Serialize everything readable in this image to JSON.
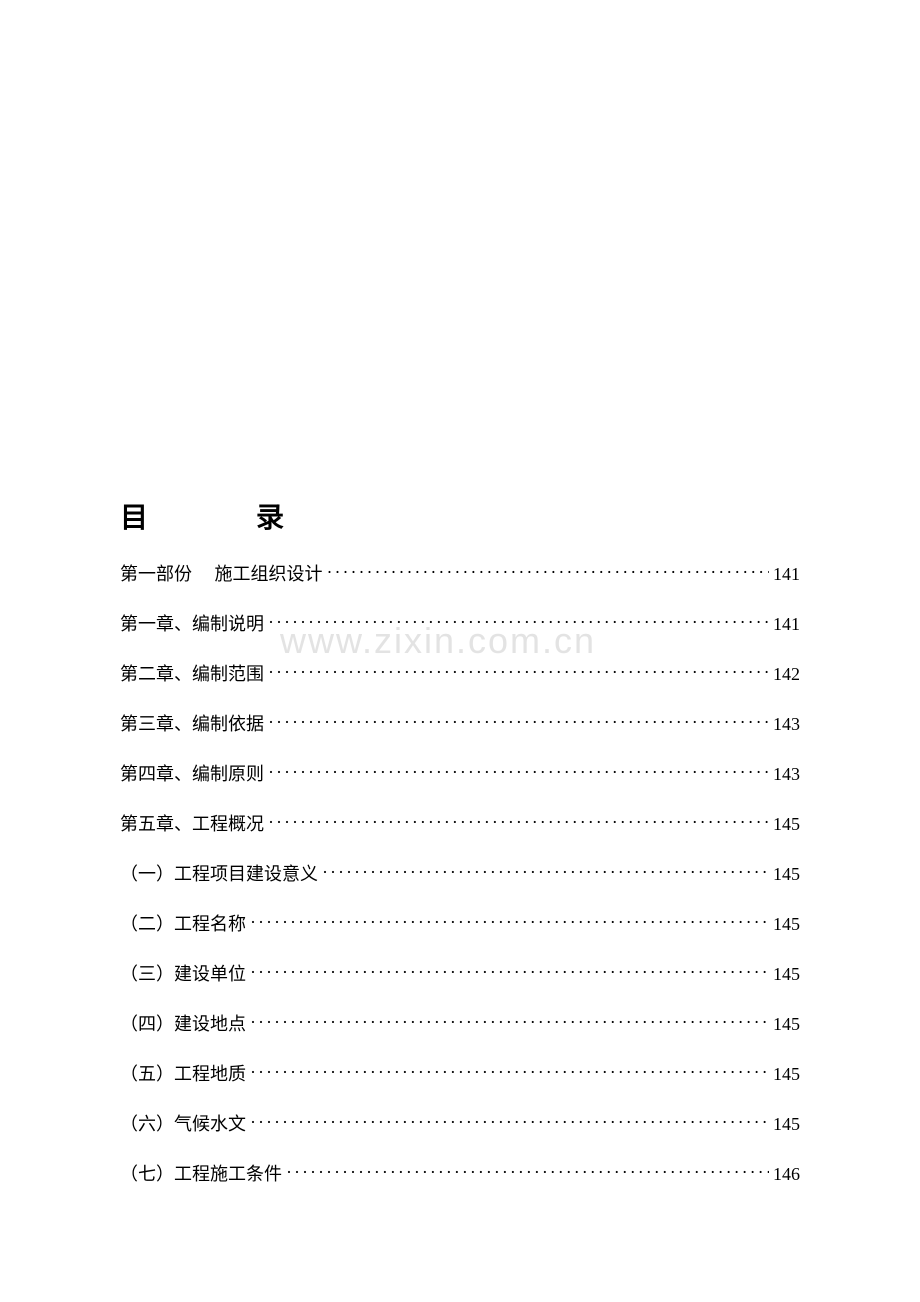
{
  "title": {
    "char1": "目",
    "char2": "录"
  },
  "watermark": "www.zixin.com.cn",
  "entries": [
    {
      "label": "第一部份　 施工组织设计",
      "page": "141"
    },
    {
      "label": "第一章、编制说明",
      "page": "141"
    },
    {
      "label": "第二章、编制范围",
      "page": "142"
    },
    {
      "label": "第三章、编制依据",
      "page": "143"
    },
    {
      "label": "第四章、编制原则",
      "page": "143"
    },
    {
      "label": "第五章、工程概况",
      "page": "145"
    },
    {
      "label": "（一）工程项目建设意义",
      "page": "145"
    },
    {
      "label": "（二）工程名称",
      "page": "145"
    },
    {
      "label": "（三）建设单位",
      "page": "145"
    },
    {
      "label": "（四）建设地点",
      "page": "145"
    },
    {
      "label": "（五）工程地质",
      "page": "145"
    },
    {
      "label": "（六）气候水文",
      "page": "145"
    },
    {
      "label": "（七）工程施工条件",
      "page": "146"
    }
  ],
  "colors": {
    "background": "#ffffff",
    "text": "#000000",
    "watermark": "rgba(200,200,200,0.5)"
  },
  "typography": {
    "title_fontsize": 28,
    "entry_fontsize": 18,
    "font_family": "KaiTi"
  },
  "dots": "······················································································································································"
}
